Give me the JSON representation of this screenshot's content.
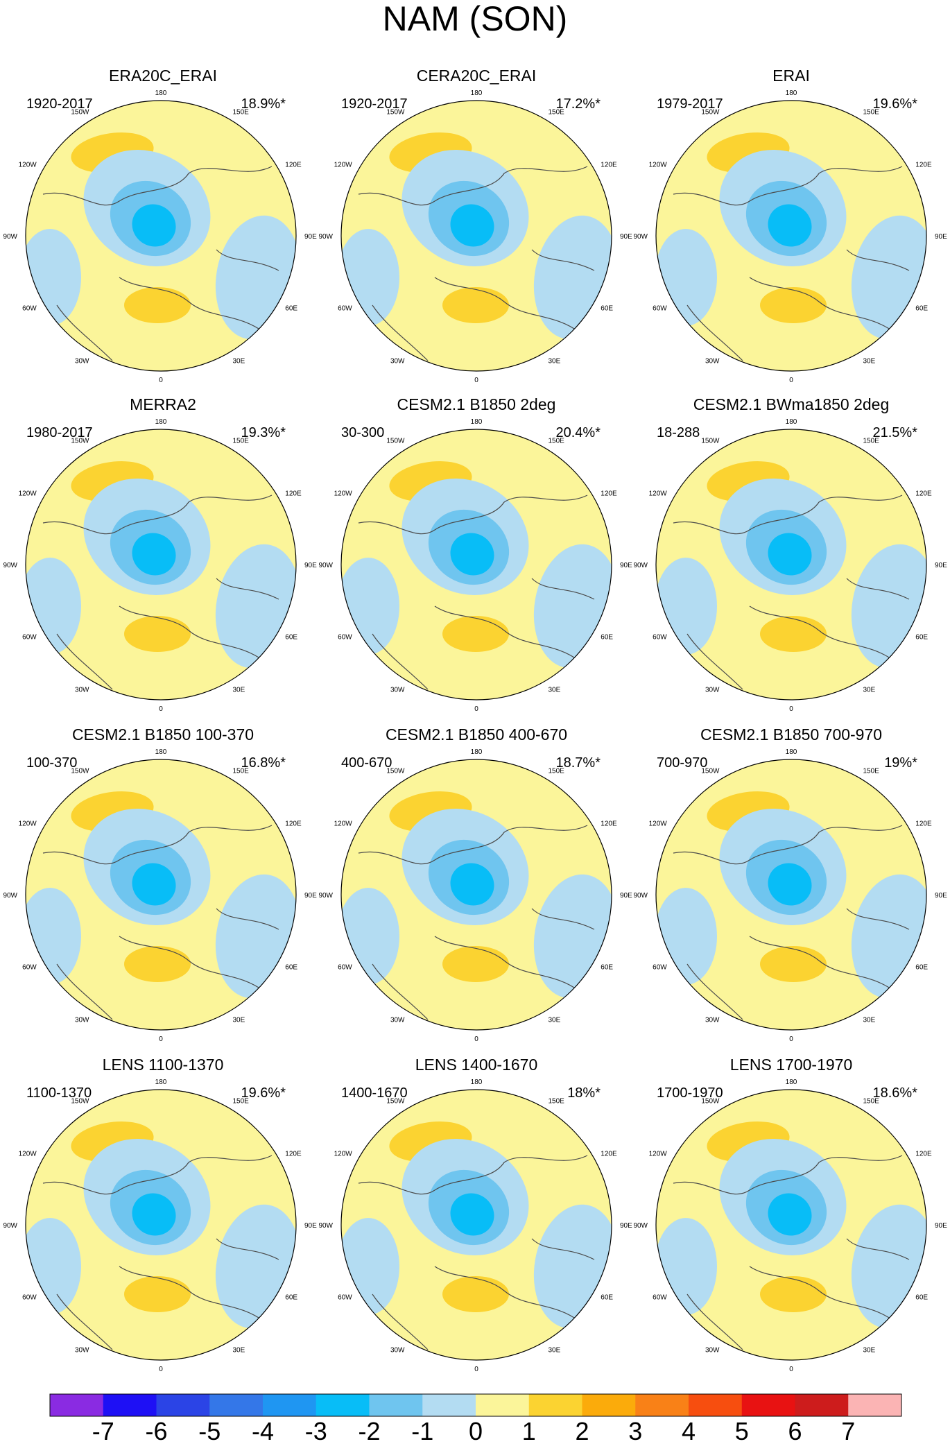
{
  "title": "NAM (SON)",
  "longitude_labels": [
    "180",
    "150E",
    "120E",
    "90E",
    "60E",
    "30E",
    "0",
    "30W",
    "60W",
    "90W",
    "120W",
    "150W"
  ],
  "panels": [
    {
      "title": "ERA20C_ERAI",
      "period": "1920-2017",
      "variance": "18.9%*"
    },
    {
      "title": "CERA20C_ERAI",
      "period": "1920-2017",
      "variance": "17.2%*"
    },
    {
      "title": "ERAI",
      "period": "1979-2017",
      "variance": "19.6%*"
    },
    {
      "title": "MERRA2",
      "period": "1980-2017",
      "variance": "19.3%*"
    },
    {
      "title": "CESM2.1 B1850 2deg",
      "period": "30-300",
      "variance": "20.4%*"
    },
    {
      "title": "CESM2.1 BWma1850 2deg",
      "period": "18-288",
      "variance": "21.5%*"
    },
    {
      "title": "CESM2.1 B1850 100-370",
      "period": "100-370",
      "variance": "16.8%*"
    },
    {
      "title": "CESM2.1 B1850 400-670",
      "period": "400-670",
      "variance": "18.7%*"
    },
    {
      "title": "CESM2.1 B1850 700-970",
      "period": "700-970",
      "variance": "19%*"
    },
    {
      "title": "LENS 1100-1370",
      "period": "1100-1370",
      "variance": "19.6%*"
    },
    {
      "title": "LENS 1400-1670",
      "period": "1400-1670",
      "variance": "18%*"
    },
    {
      "title": "LENS 1700-1970",
      "period": "1700-1970",
      "variance": "18.6%*"
    }
  ],
  "colorbar": {
    "labels": [
      "-7",
      "-6",
      "-5",
      "-4",
      "-3",
      "-2",
      "-1",
      "0",
      "1",
      "2",
      "3",
      "4",
      "5",
      "6",
      "7"
    ],
    "colors": [
      "#8a2be2",
      "#1e10f5",
      "#2b44e6",
      "#3477e8",
      "#1f96f2",
      "#08bdf7",
      "#6fc5ef",
      "#b3dcf2",
      "#fbf59a",
      "#fbd331",
      "#fbab0b",
      "#f98117",
      "#f74e0f",
      "#e81212",
      "#cd1c1c",
      "#fbb4b4"
    ]
  }
}
